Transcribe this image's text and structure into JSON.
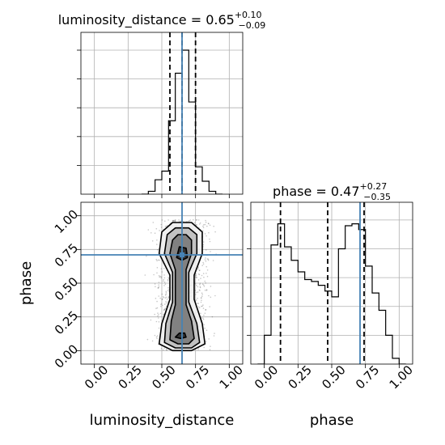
{
  "chart_data": [
    {
      "type": "histogram",
      "panel": "luminosity_distance marginal",
      "title": {
        "param": "luminosity_distance",
        "median": "0.65",
        "plus": "+0.10",
        "minus": "−0.09"
      },
      "bin_edges": [
        0.35,
        0.4,
        0.45,
        0.5,
        0.55,
        0.6,
        0.65,
        0.7,
        0.75,
        0.8,
        0.85,
        0.9,
        0.95
      ],
      "counts": [
        0.0,
        0.02,
        0.1,
        0.16,
        0.51,
        0.84,
        1.0,
        0.64,
        0.19,
        0.09,
        0.02,
        0.0
      ],
      "quantiles": [
        0.56,
        0.65,
        0.75
      ],
      "truth": 0.65,
      "xlim": [
        -0.1,
        1.1
      ],
      "ylim": [
        0,
        1.0
      ],
      "y_tick_labels_shown": false,
      "grid": true
    },
    {
      "type": "scatter",
      "panel": "luminosity_distance vs phase 2D density",
      "xlabel": "luminosity_distance",
      "ylabel": "phase",
      "x_ticks": [
        "0.00",
        "0.25",
        "0.50",
        "0.75",
        "1.00"
      ],
      "y_ticks": [
        "0.00",
        "0.25",
        "0.50",
        "0.75",
        "1.00"
      ],
      "x_tick_values": [
        0.0,
        0.25,
        0.5,
        0.75,
        1.0
      ],
      "y_tick_values": [
        0.0,
        0.25,
        0.5,
        0.75,
        1.0
      ],
      "xlim": [
        -0.1,
        1.1
      ],
      "ylim": [
        -0.1,
        1.1
      ],
      "truth": {
        "x": 0.65,
        "y": 0.71
      },
      "contour_levels": [
        [
          [
            0.48,
            0.05
          ],
          [
            0.58,
            0.0
          ],
          [
            0.72,
            0.0
          ],
          [
            0.82,
            0.05
          ],
          [
            0.8,
            0.2
          ],
          [
            0.74,
            0.38
          ],
          [
            0.74,
            0.56
          ],
          [
            0.8,
            0.72
          ],
          [
            0.8,
            0.88
          ],
          [
            0.72,
            0.95
          ],
          [
            0.58,
            0.95
          ],
          [
            0.5,
            0.88
          ],
          [
            0.48,
            0.72
          ],
          [
            0.56,
            0.56
          ],
          [
            0.56,
            0.38
          ],
          [
            0.5,
            0.2
          ]
        ],
        [
          [
            0.52,
            0.06
          ],
          [
            0.6,
            0.02
          ],
          [
            0.72,
            0.02
          ],
          [
            0.78,
            0.06
          ],
          [
            0.76,
            0.2
          ],
          [
            0.7,
            0.36
          ],
          [
            0.7,
            0.58
          ],
          [
            0.76,
            0.72
          ],
          [
            0.76,
            0.86
          ],
          [
            0.7,
            0.91
          ],
          [
            0.6,
            0.91
          ],
          [
            0.54,
            0.86
          ],
          [
            0.52,
            0.72
          ],
          [
            0.58,
            0.58
          ],
          [
            0.58,
            0.36
          ],
          [
            0.53,
            0.2
          ]
        ],
        [
          [
            0.56,
            0.08
          ],
          [
            0.62,
            0.05
          ],
          [
            0.7,
            0.05
          ],
          [
            0.74,
            0.09
          ],
          [
            0.72,
            0.22
          ],
          [
            0.68,
            0.34
          ],
          [
            0.68,
            0.6
          ],
          [
            0.72,
            0.72
          ],
          [
            0.72,
            0.82
          ],
          [
            0.68,
            0.86
          ],
          [
            0.62,
            0.86
          ],
          [
            0.58,
            0.82
          ],
          [
            0.56,
            0.72
          ],
          [
            0.6,
            0.6
          ],
          [
            0.6,
            0.34
          ],
          [
            0.57,
            0.22
          ]
        ],
        [
          [
            0.6,
            0.1
          ],
          [
            0.64,
            0.09
          ],
          [
            0.68,
            0.1
          ],
          [
            0.67,
            0.13
          ],
          [
            0.63,
            0.13
          ]
        ],
        [
          [
            0.61,
            0.69
          ],
          [
            0.65,
            0.67
          ],
          [
            0.69,
            0.69
          ],
          [
            0.68,
            0.76
          ],
          [
            0.63,
            0.77
          ]
        ]
      ],
      "density_peaks": [
        {
          "x": 0.65,
          "y": 0.11
        },
        {
          "x": 0.65,
          "y": 0.72
        }
      ],
      "point_cloud": {
        "x_center": 0.65,
        "x_spread": 0.1,
        "y_range": [
          0.0,
          1.0
        ]
      }
    },
    {
      "type": "histogram",
      "panel": "phase marginal",
      "title": {
        "param": "phase",
        "median": "0.47",
        "plus": "+0.27",
        "minus": "−0.35"
      },
      "xlabel": "phase",
      "x_ticks": [
        "0.00",
        "0.25",
        "0.50",
        "0.75",
        "1.00"
      ],
      "x_tick_values": [
        0.0,
        0.25,
        0.5,
        0.75,
        1.0
      ],
      "bin_edges": [
        -0.05,
        0.0,
        0.05,
        0.1,
        0.15,
        0.2,
        0.25,
        0.3,
        0.35,
        0.4,
        0.45,
        0.5,
        0.55,
        0.6,
        0.65,
        0.7,
        0.75,
        0.8,
        0.85,
        0.9,
        0.95,
        1.0,
        1.05
      ],
      "counts": [
        0.0,
        0.15,
        0.62,
        0.73,
        0.61,
        0.54,
        0.48,
        0.44,
        0.43,
        0.41,
        0.38,
        0.35,
        0.6,
        0.72,
        0.73,
        0.7,
        0.51,
        0.37,
        0.28,
        0.15,
        0.03,
        0.0
      ],
      "quantiles": [
        0.12,
        0.47,
        0.74
      ],
      "truth": 0.71,
      "xlim": [
        -0.1,
        1.1
      ],
      "ylim": [
        0,
        0.8
      ],
      "y_tick_labels_shown": false,
      "grid": true
    }
  ],
  "colors": {
    "truth_line": "#4682b4",
    "hist_line": "#000000",
    "grid": "#b0b0b0",
    "density_dark": "#3a3a3a",
    "density_light": "#f2f2f2",
    "points": "#000000"
  }
}
